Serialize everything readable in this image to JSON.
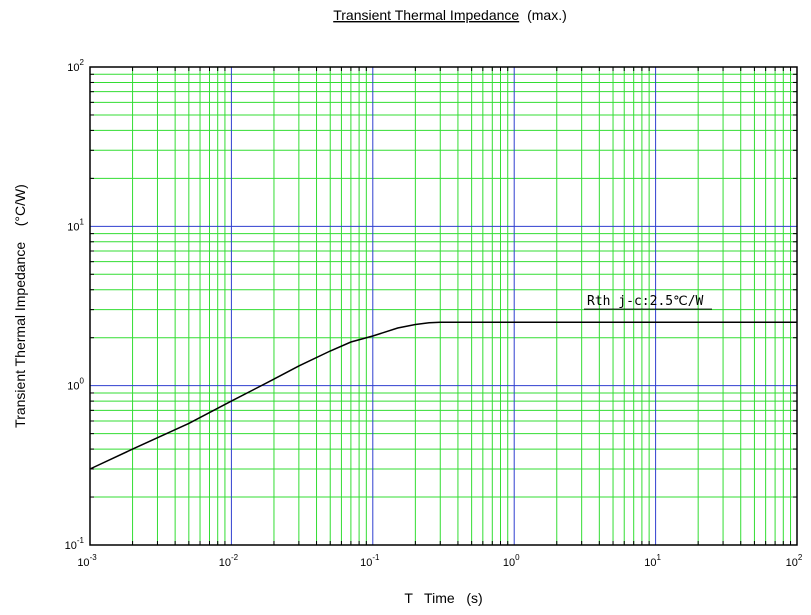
{
  "chart_data": {
    "type": "line",
    "title": "Transient Thermal Impedance",
    "title_suffix": "(max.)",
    "xlabel": "T   Time   (s)",
    "ylabel": "Transient Thermal Impedance    (°C/W)",
    "x_scale": "log",
    "y_scale": "log",
    "xlim": [
      0.001,
      100
    ],
    "ylim": [
      0.1,
      100
    ],
    "x_ticks": [
      {
        "base": "10",
        "exp": "-3"
      },
      {
        "base": "10",
        "exp": "-2"
      },
      {
        "base": "10",
        "exp": "-1"
      },
      {
        "base": "10",
        "exp": "0"
      },
      {
        "base": "10",
        "exp": "1"
      },
      {
        "base": "10",
        "exp": "2"
      }
    ],
    "y_ticks": [
      {
        "base": "10",
        "exp": "-1"
      },
      {
        "base": "10",
        "exp": "0"
      },
      {
        "base": "10",
        "exp": "1"
      },
      {
        "base": "10",
        "exp": "2"
      }
    ],
    "grid": true,
    "major_grid_color": "#2f3fcf",
    "minor_grid_color": "#33dd33",
    "line_color": "#000000",
    "annotation": "Rth j-c:2.5℃/W",
    "series": [
      {
        "x": [
          0.001,
          0.002,
          0.005,
          0.01,
          0.02,
          0.03,
          0.05,
          0.07,
          0.1,
          0.15,
          0.2,
          0.25,
          0.3,
          0.5,
          1,
          10,
          100
        ],
        "y": [
          0.3,
          0.4,
          0.58,
          0.8,
          1.1,
          1.33,
          1.65,
          1.88,
          2.05,
          2.3,
          2.42,
          2.48,
          2.5,
          2.5,
          2.5,
          2.5,
          2.5
        ]
      }
    ]
  }
}
